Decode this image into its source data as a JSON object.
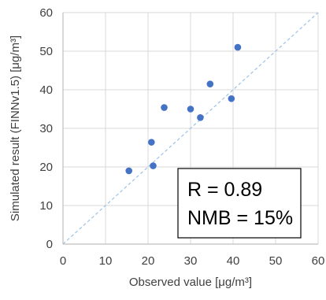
{
  "chart_data": {
    "type": "scatter",
    "title": "",
    "xlabel": "Observed value [μg/m³]",
    "ylabel": "Simulated result (FINNv1.5) [μg/m³]",
    "xlim": [
      0,
      60
    ],
    "ylim": [
      0,
      60
    ],
    "xticks": [
      0,
      10,
      20,
      30,
      40,
      50,
      60
    ],
    "yticks": [
      0,
      10,
      20,
      30,
      40,
      50,
      60
    ],
    "grid": true,
    "series": [
      {
        "marker_color": "#4472c4",
        "points": [
          {
            "x": 15.5,
            "y": 19.0
          },
          {
            "x": 20.8,
            "y": 26.4
          },
          {
            "x": 21.2,
            "y": 20.3
          },
          {
            "x": 23.8,
            "y": 35.4
          },
          {
            "x": 30.0,
            "y": 35.0
          },
          {
            "x": 32.3,
            "y": 32.8
          },
          {
            "x": 34.6,
            "y": 41.5
          },
          {
            "x": 39.6,
            "y": 37.7
          },
          {
            "x": 41.1,
            "y": 51.0
          }
        ]
      }
    ],
    "reference_line": {
      "label": "",
      "from": [
        0,
        0
      ],
      "to": [
        60,
        60
      ],
      "color": "#9dc3e6"
    },
    "annotations": [
      "R = 0.89",
      "NMB = 15%"
    ]
  }
}
